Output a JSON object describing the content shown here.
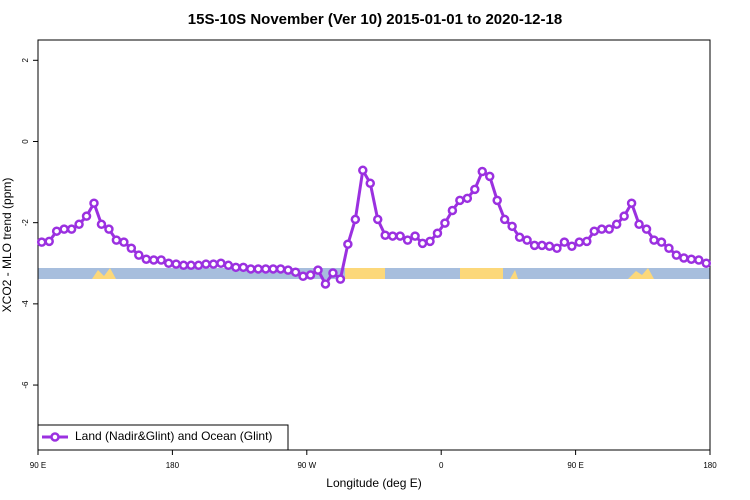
{
  "chart_data": {
    "type": "line",
    "title": "15S-10S November (Ver 10)   2015-01-01 to 2020-12-18",
    "x_label": "Longitude (deg E)",
    "y_label": "XCO2 - MLO trend (ppm)",
    "xlim": [
      90,
      540
    ],
    "xticks": [
      {
        "value": 90,
        "label": "90 E"
      },
      {
        "value": 180,
        "label": "180"
      },
      {
        "value": 270,
        "label": "90 W"
      },
      {
        "value": 360,
        "label": "0"
      },
      {
        "value": 450,
        "label": "90 E"
      },
      {
        "value": 540,
        "label": "180"
      }
    ],
    "ylim": [
      -7.6,
      2.5
    ],
    "yticks": [
      -6,
      -4,
      -2,
      0,
      2
    ],
    "legend": "bottom-left",
    "x": [
      92.5,
      97.5,
      102.5,
      107.5,
      112.5,
      117.5,
      122.5,
      127.5,
      132.5,
      137.5,
      142.5,
      147.5,
      152.5,
      157.5,
      162.5,
      167.5,
      172.5,
      177.5,
      182.5,
      187.5,
      192.5,
      197.5,
      202.5,
      207.5,
      212.5,
      217.5,
      222.5,
      227.5,
      232.5,
      237.5,
      242.5,
      247.5,
      252.5,
      257.5,
      262.5,
      267.5,
      272.5,
      277.5,
      282.5,
      287.5,
      292.5,
      297.5,
      302.5,
      307.5,
      312.5,
      317.5,
      322.5,
      327.5,
      332.5,
      337.5,
      342.5,
      347.5,
      352.5,
      357.5,
      362.5,
      367.5,
      372.5,
      377.5,
      382.5,
      387.5,
      392.5,
      397.5,
      402.5,
      407.5,
      412.5,
      417.5,
      422.5,
      427.5,
      432.5,
      437.5,
      442.5,
      447.5,
      452.5,
      457.5,
      462.5,
      467.5,
      472.5,
      477.5,
      482.5,
      487.5,
      492.5,
      497.5,
      502.5,
      507.5,
      512.5,
      517.5,
      522.5,
      527.5,
      532.5,
      537.5
    ],
    "series": [
      {
        "name": "Land (Nadir&Glint) and Ocean (Glint)",
        "color": "#9b30e0",
        "values": [
          -2.48,
          -2.46,
          -2.21,
          -2.16,
          -2.16,
          -2.04,
          -1.84,
          -1.52,
          -2.04,
          -2.16,
          -2.43,
          -2.48,
          -2.63,
          -2.8,
          -2.9,
          -2.92,
          -2.92,
          -3.0,
          -3.02,
          -3.05,
          -3.05,
          -3.05,
          -3.02,
          -3.02,
          -3.0,
          -3.05,
          -3.1,
          -3.1,
          -3.14,
          -3.14,
          -3.14,
          -3.14,
          -3.14,
          -3.17,
          -3.22,
          -3.32,
          -3.29,
          -3.17,
          -3.51,
          -3.24,
          -3.39,
          -2.53,
          -1.92,
          -0.71,
          -1.03,
          -1.92,
          -2.31,
          -2.33,
          -2.33,
          -2.43,
          -2.33,
          -2.51,
          -2.46,
          -2.26,
          -2.01,
          -1.7,
          -1.45,
          -1.4,
          -1.18,
          -0.74,
          -0.86,
          -1.45,
          -1.92,
          -2.09,
          -2.36,
          -2.43,
          -2.56,
          -2.56,
          -2.58,
          -2.63,
          -2.48,
          -2.58,
          -2.48,
          -2.46,
          -2.21,
          -2.16,
          -2.16,
          -2.04,
          -1.84,
          -1.52,
          -2.04,
          -2.16,
          -2.43,
          -2.48,
          -2.63,
          -2.8,
          -2.87,
          -2.9,
          -2.92,
          -3.0
        ]
      }
    ]
  }
}
